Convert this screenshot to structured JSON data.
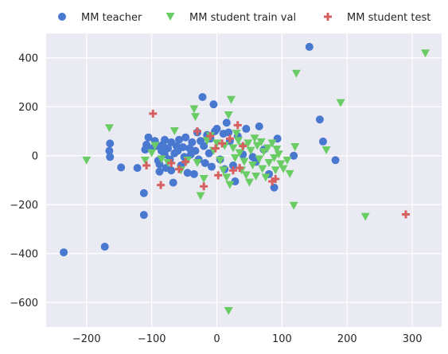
{
  "chart_data": {
    "type": "scatter",
    "title": "",
    "xlabel": "",
    "ylabel": "",
    "xlim": [
      -262,
      345
    ],
    "ylim": [
      -700,
      500
    ],
    "xticks": [
      -200,
      -100,
      0,
      100,
      200,
      300
    ],
    "xtick_labels": [
      "−200",
      "−100",
      "0",
      "100",
      "200",
      "300"
    ],
    "yticks": [
      -600,
      -400,
      -200,
      0,
      200,
      400
    ],
    "ytick_labels": [
      "−600",
      "−400",
      "−200",
      "0",
      "200",
      "400"
    ],
    "grid": true,
    "legend_position": "top",
    "series": [
      {
        "name": "MM teacher",
        "color": "#4878d0",
        "marker": "circle",
        "points": [
          [
            -235,
            -395
          ],
          [
            -172,
            -372
          ],
          [
            -164,
            50
          ],
          [
            -165,
            20
          ],
          [
            -164,
            -5
          ],
          [
            -147,
            -48
          ],
          [
            -122,
            -50
          ],
          [
            -112,
            -153
          ],
          [
            -112,
            -242
          ],
          [
            -110,
            25
          ],
          [
            -108,
            45
          ],
          [
            -105,
            75
          ],
          [
            -100,
            30
          ],
          [
            -95,
            60
          ],
          [
            -92,
            40
          ],
          [
            -90,
            -20
          ],
          [
            -88,
            -35
          ],
          [
            -88,
            -65
          ],
          [
            -85,
            20
          ],
          [
            -83,
            45
          ],
          [
            -80,
            65
          ],
          [
            -80,
            5
          ],
          [
            -78,
            -50
          ],
          [
            -75,
            30
          ],
          [
            -72,
            -15
          ],
          [
            -70,
            55
          ],
          [
            -70,
            -60
          ],
          [
            -67,
            -110
          ],
          [
            -65,
            10
          ],
          [
            -62,
            40
          ],
          [
            -60,
            20
          ],
          [
            -58,
            65
          ],
          [
            -55,
            -40
          ],
          [
            -52,
            35
          ],
          [
            -50,
            -5
          ],
          [
            -48,
            75
          ],
          [
            -45,
            -70
          ],
          [
            -42,
            30
          ],
          [
            -40,
            5
          ],
          [
            -38,
            55
          ],
          [
            -35,
            -75
          ],
          [
            -33,
            20
          ],
          [
            -30,
            95
          ],
          [
            -28,
            -15
          ],
          [
            -25,
            60
          ],
          [
            -22,
            240
          ],
          [
            -20,
            40
          ],
          [
            -18,
            -30
          ],
          [
            -15,
            85
          ],
          [
            -12,
            10
          ],
          [
            -10,
            70
          ],
          [
            -8,
            -45
          ],
          [
            -5,
            210
          ],
          [
            -3,
            100
          ],
          [
            0,
            110
          ],
          [
            5,
            -15
          ],
          [
            10,
            90
          ],
          [
            12,
            -55
          ],
          [
            15,
            135
          ],
          [
            18,
            95
          ],
          [
            20,
            60
          ],
          [
            25,
            -40
          ],
          [
            28,
            -105
          ],
          [
            32,
            80
          ],
          [
            40,
            5
          ],
          [
            45,
            110
          ],
          [
            55,
            -5
          ],
          [
            60,
            -25
          ],
          [
            65,
            120
          ],
          [
            72,
            25
          ],
          [
            80,
            -75
          ],
          [
            88,
            -130
          ],
          [
            93,
            70
          ],
          [
            118,
            0
          ],
          [
            142,
            445
          ],
          [
            158,
            148
          ],
          [
            163,
            58
          ],
          [
            182,
            -18
          ]
        ]
      },
      {
        "name": "MM student train val",
        "color": "#6acc64",
        "marker": "triangle_down",
        "points": [
          [
            -200,
            -20
          ],
          [
            -165,
            112
          ],
          [
            -110,
            -20
          ],
          [
            -100,
            10
          ],
          [
            -95,
            40
          ],
          [
            -85,
            -15
          ],
          [
            -75,
            -30
          ],
          [
            -65,
            100
          ],
          [
            -55,
            -60
          ],
          [
            -45,
            -20
          ],
          [
            -35,
            190
          ],
          [
            -33,
            158
          ],
          [
            -30,
            -30
          ],
          [
            -25,
            -165
          ],
          [
            -20,
            -95
          ],
          [
            -15,
            60
          ],
          [
            -10,
            80
          ],
          [
            -5,
            20
          ],
          [
            0,
            50
          ],
          [
            5,
            -20
          ],
          [
            10,
            -60
          ],
          [
            12,
            40
          ],
          [
            15,
            -90
          ],
          [
            18,
            165
          ],
          [
            20,
            -120
          ],
          [
            22,
            228
          ],
          [
            25,
            30
          ],
          [
            28,
            -10
          ],
          [
            30,
            90
          ],
          [
            33,
            60
          ],
          [
            35,
            10
          ],
          [
            38,
            -60
          ],
          [
            40,
            35
          ],
          [
            42,
            -25
          ],
          [
            45,
            -80
          ],
          [
            48,
            50
          ],
          [
            50,
            -110
          ],
          [
            52,
            20
          ],
          [
            55,
            -40
          ],
          [
            58,
            70
          ],
          [
            60,
            -85
          ],
          [
            62,
            40
          ],
          [
            65,
            -15
          ],
          [
            68,
            55
          ],
          [
            70,
            -55
          ],
          [
            72,
            15
          ],
          [
            75,
            -90
          ],
          [
            78,
            30
          ],
          [
            80,
            -30
          ],
          [
            85,
            50
          ],
          [
            88,
            -10
          ],
          [
            90,
            -60
          ],
          [
            92,
            25
          ],
          [
            95,
            5
          ],
          [
            98,
            -35
          ],
          [
            102,
            -55
          ],
          [
            108,
            -20
          ],
          [
            112,
            -75
          ],
          [
            118,
            -205
          ],
          [
            120,
            35
          ],
          [
            122,
            335
          ],
          [
            168,
            22
          ],
          [
            190,
            215
          ],
          [
            228,
            -250
          ],
          [
            320,
            418
          ],
          [
            18,
            -635
          ]
        ]
      },
      {
        "name": "MM student test",
        "color": "#d65f5f",
        "marker": "plus",
        "points": [
          [
            -108,
            -40
          ],
          [
            -98,
            172
          ],
          [
            -86,
            -120
          ],
          [
            -70,
            -30
          ],
          [
            -58,
            -55
          ],
          [
            -48,
            -25
          ],
          [
            -30,
            100
          ],
          [
            -20,
            -125
          ],
          [
            -10,
            80
          ],
          [
            -2,
            30
          ],
          [
            2,
            -80
          ],
          [
            8,
            50
          ],
          [
            20,
            70
          ],
          [
            25,
            -60
          ],
          [
            32,
            125
          ],
          [
            35,
            -50
          ],
          [
            40,
            40
          ],
          [
            85,
            -105
          ],
          [
            90,
            -95
          ],
          [
            290,
            -240
          ]
        ]
      }
    ]
  }
}
